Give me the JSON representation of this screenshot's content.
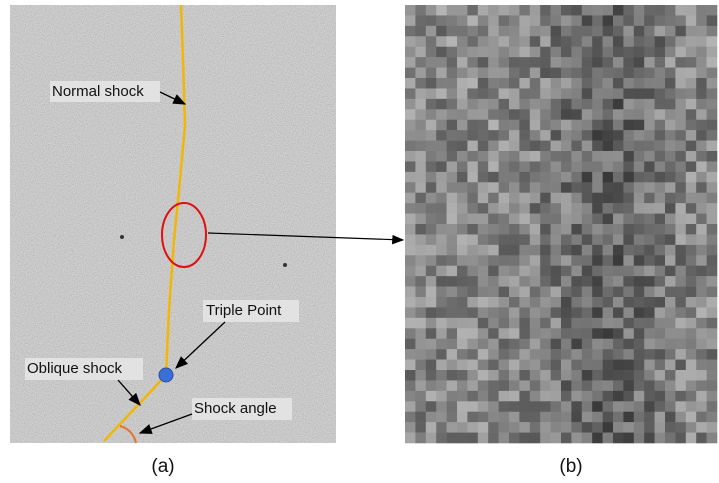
{
  "panels": [
    {
      "caption": "(a)",
      "annotations": [
        "Normal shock",
        "Triple Point",
        "Oblique shock",
        "Shock angle"
      ]
    },
    {
      "caption": "(b)"
    }
  ]
}
